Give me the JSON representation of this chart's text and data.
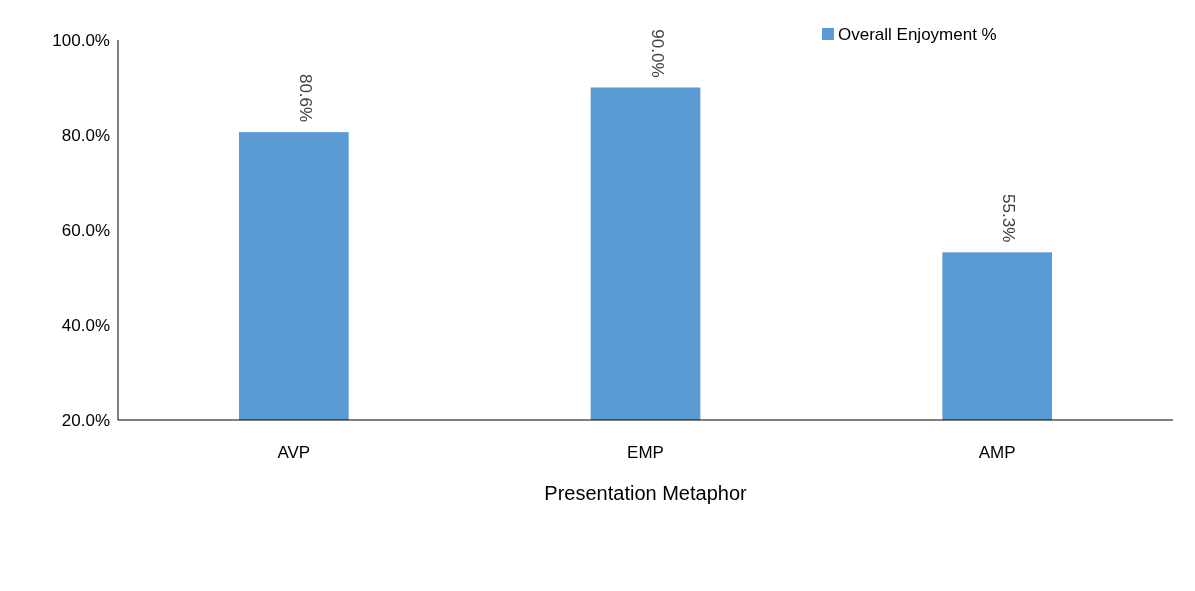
{
  "chart_data": {
    "type": "bar",
    "xlabel": "Presentation Metaphor",
    "categories": [
      "AVP",
      "EMP",
      "AMP"
    ],
    "series": [
      {
        "name": "Overall Enjoyment %",
        "color": "#5b9bd5",
        "values": [
          80.6,
          90.0,
          55.3
        ],
        "value_labels": [
          "80.6%",
          "90.0%",
          "55.3%"
        ]
      }
    ],
    "ylim": [
      20,
      100
    ],
    "yticks": [
      {
        "value": 20,
        "label": "20.0%"
      },
      {
        "value": 40,
        "label": "40.0%"
      },
      {
        "value": 60,
        "label": "60.0%"
      },
      {
        "value": 80,
        "label": "80.0%"
      },
      {
        "value": 100,
        "label": "100.0%"
      }
    ],
    "grid": false,
    "legend": "top right"
  }
}
